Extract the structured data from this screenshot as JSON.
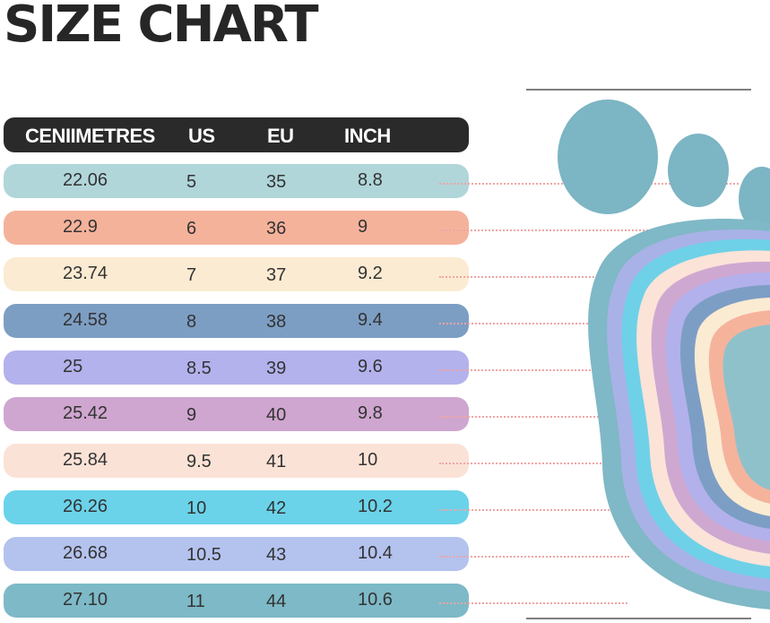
{
  "title": "SIZE CHART",
  "colors": {
    "header": "#2a2a2a",
    "toe": "#7cb5c3",
    "ring_outer": "#7fb8c6",
    "sole_center": "#8fc1cb"
  },
  "chart_data": {
    "type": "table",
    "headers": [
      "CENIIMETRES",
      "US",
      "EU",
      "INCH"
    ],
    "rows": [
      {
        "cm": "22.06",
        "us": "5",
        "eu": "35",
        "inch": "8.8",
        "color": "#b0d6da"
      },
      {
        "cm": "22.9",
        "us": "6",
        "eu": "36",
        "inch": "9",
        "color": "#f5b29b"
      },
      {
        "cm": "23.74",
        "us": "7",
        "eu": "37",
        "inch": "9.2",
        "color": "#fbebd2"
      },
      {
        "cm": "24.58",
        "us": "8",
        "eu": "38",
        "inch": "9.4",
        "color": "#7d9ec3"
      },
      {
        "cm": "25",
        "us": "8.5",
        "eu": "39",
        "inch": "9.6",
        "color": "#b3b2ed"
      },
      {
        "cm": "25.42",
        "us": "9",
        "eu": "40",
        "inch": "9.8",
        "color": "#cfa6cf"
      },
      {
        "cm": "25.84",
        "us": "9.5",
        "eu": "41",
        "inch": "10",
        "color": "#fbe2d6"
      },
      {
        "cm": "26.26",
        "us": "10",
        "eu": "42",
        "inch": "10.2",
        "color": "#6ad3ea"
      },
      {
        "cm": "26.68",
        "us": "10.5",
        "eu": "43",
        "inch": "10.4",
        "color": "#b4c2ee"
      },
      {
        "cm": "27.10",
        "us": "11",
        "eu": "44",
        "inch": "10.6",
        "color": "#7db9c7"
      }
    ]
  }
}
